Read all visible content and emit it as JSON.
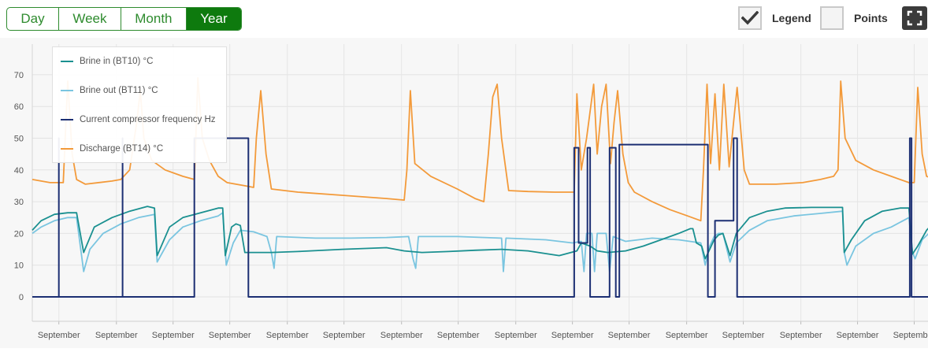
{
  "toolbar": {
    "ranges": [
      "Day",
      "Week",
      "Month",
      "Year"
    ],
    "active_range": "Year",
    "legend_label": "Legend",
    "legend_checked": true,
    "points_label": "Points",
    "points_checked": false,
    "fullscreen_icon": "fullscreen-icon"
  },
  "chart_data": {
    "type": "line",
    "title": "",
    "xlabel": "",
    "ylabel": "",
    "ylim": [
      -8,
      78
    ],
    "yticks": [
      0,
      10,
      20,
      30,
      40,
      50,
      60,
      70
    ],
    "xlim": [
      0,
      100
    ],
    "xticks": [
      3,
      9.5,
      15.9,
      22.3,
      28.8,
      35.2,
      41.7,
      48.1,
      54.6,
      61,
      67.4,
      73.9,
      80.3,
      86.8,
      93.2,
      99.6
    ],
    "xtick_labels": [
      "September",
      "September",
      "September",
      "September",
      "September",
      "September",
      "September",
      "September",
      "September",
      "September",
      "September",
      "September",
      "September",
      "September",
      "September",
      "September"
    ],
    "grid": true,
    "legend_position": "top-left",
    "series": [
      {
        "name": "Brine in (BT10) °C",
        "color": "#1a9090",
        "points": [
          [
            0,
            21
          ],
          [
            1,
            24
          ],
          [
            2.5,
            26
          ],
          [
            4,
            26.5
          ],
          [
            5,
            26.5
          ],
          [
            5.8,
            14
          ],
          [
            7,
            22
          ],
          [
            9,
            25
          ],
          [
            11,
            27
          ],
          [
            13,
            28.5
          ],
          [
            13.8,
            28
          ],
          [
            14.1,
            13
          ],
          [
            15.5,
            22
          ],
          [
            17,
            25
          ],
          [
            19,
            26.5
          ],
          [
            21,
            28
          ],
          [
            21.5,
            28
          ],
          [
            21.8,
            13
          ],
          [
            22.5,
            22
          ],
          [
            23,
            23
          ],
          [
            23.5,
            22.5
          ],
          [
            24,
            14
          ],
          [
            27,
            14
          ],
          [
            30,
            14.3
          ],
          [
            35,
            15
          ],
          [
            40,
            15.5
          ],
          [
            42,
            14.5
          ],
          [
            44,
            14
          ],
          [
            47,
            14.3
          ],
          [
            50,
            14.7
          ],
          [
            53,
            15
          ],
          [
            56,
            14.5
          ],
          [
            59.5,
            13
          ],
          [
            61.5,
            14.5
          ],
          [
            62,
            17
          ],
          [
            63,
            16
          ],
          [
            63.8,
            14.5
          ],
          [
            65,
            14
          ],
          [
            67,
            14.5
          ],
          [
            69,
            16
          ],
          [
            71,
            18
          ],
          [
            73,
            20
          ],
          [
            74.3,
            21.5
          ],
          [
            74.6,
            21.5
          ],
          [
            75,
            17
          ],
          [
            75.6,
            16
          ],
          [
            76,
            12
          ],
          [
            76.5,
            15
          ],
          [
            77,
            18
          ],
          [
            77.5,
            19.5
          ],
          [
            78,
            20
          ],
          [
            78.8,
            13
          ],
          [
            79.5,
            20
          ],
          [
            81,
            25
          ],
          [
            83,
            27
          ],
          [
            85,
            28
          ],
          [
            88,
            28.2
          ],
          [
            90,
            28.2
          ],
          [
            91.5,
            28.2
          ],
          [
            91.7,
            14
          ],
          [
            92.5,
            18
          ],
          [
            94,
            24
          ],
          [
            96,
            27
          ],
          [
            98,
            28
          ],
          [
            99,
            28
          ],
          [
            99.4,
            13.5
          ],
          [
            100,
            16
          ],
          [
            101,
            21
          ],
          [
            102,
            24
          ],
          [
            103,
            25.5
          ],
          [
            103.5,
            26
          ],
          [
            104,
            12
          ],
          [
            104.7,
            18
          ]
        ]
      },
      {
        "name": "Brine out (BT11) °C",
        "color": "#7ac5e0",
        "points": [
          [
            0,
            20
          ],
          [
            1,
            22
          ],
          [
            2.5,
            24
          ],
          [
            4,
            25
          ],
          [
            5,
            25
          ],
          [
            5.8,
            8
          ],
          [
            6.5,
            15
          ],
          [
            8,
            20
          ],
          [
            10,
            23
          ],
          [
            12,
            25
          ],
          [
            13.8,
            26
          ],
          [
            14.1,
            11
          ],
          [
            15.5,
            18
          ],
          [
            17,
            22
          ],
          [
            19,
            24
          ],
          [
            21,
            25.5
          ],
          [
            21.5,
            26.5
          ],
          [
            21.9,
            10
          ],
          [
            22.7,
            17
          ],
          [
            23.5,
            21
          ],
          [
            25,
            20.5
          ],
          [
            26.5,
            19
          ],
          [
            27,
            14
          ],
          [
            27.3,
            9
          ],
          [
            27.6,
            19
          ],
          [
            32,
            18.5
          ],
          [
            36,
            18.5
          ],
          [
            40,
            18.7
          ],
          [
            42.5,
            19
          ],
          [
            43,
            12
          ],
          [
            43.3,
            9
          ],
          [
            43.6,
            19
          ],
          [
            48,
            19
          ],
          [
            52,
            18.6
          ],
          [
            53,
            18.5
          ],
          [
            53.2,
            8
          ],
          [
            53.5,
            18.5
          ],
          [
            58,
            18
          ],
          [
            61,
            17
          ],
          [
            62,
            17.5
          ],
          [
            62.3,
            8
          ],
          [
            62.6,
            20
          ],
          [
            63.2,
            20
          ],
          [
            63.5,
            8
          ],
          [
            63.8,
            20
          ],
          [
            64.8,
            20
          ],
          [
            65.2,
            8
          ],
          [
            65.6,
            19
          ],
          [
            67,
            17.5
          ],
          [
            70,
            18.5
          ],
          [
            73,
            18
          ],
          [
            75.5,
            17
          ],
          [
            76,
            10
          ],
          [
            76.5,
            16
          ],
          [
            77,
            19
          ],
          [
            77.5,
            20
          ],
          [
            78,
            20
          ],
          [
            78.8,
            11
          ],
          [
            79.5,
            17
          ],
          [
            81,
            21
          ],
          [
            83,
            24
          ],
          [
            86,
            25.5
          ],
          [
            89,
            26.3
          ],
          [
            91.5,
            27
          ],
          [
            91.7,
            14
          ],
          [
            92,
            10
          ],
          [
            93,
            16
          ],
          [
            95,
            20
          ],
          [
            97,
            22
          ],
          [
            99,
            25
          ],
          [
            99.4,
            14
          ],
          [
            99.7,
            12
          ],
          [
            100.5,
            18
          ],
          [
            102,
            22
          ],
          [
            103,
            23.5
          ],
          [
            103.5,
            24
          ],
          [
            104,
            9
          ],
          [
            104.7,
            18
          ]
        ]
      },
      {
        "name": "Current compressor frequency Hz",
        "color": "#1c2f73",
        "points": [
          [
            0,
            0
          ],
          [
            3,
            0
          ],
          [
            3,
            50
          ],
          [
            3,
            0
          ],
          [
            10.2,
            0
          ],
          [
            10.2,
            50
          ],
          [
            10.2,
            0
          ],
          [
            18.3,
            0
          ],
          [
            18.3,
            50
          ],
          [
            24.4,
            50
          ],
          [
            24.4,
            0
          ],
          [
            61.2,
            0
          ],
          [
            61.2,
            47
          ],
          [
            61.7,
            47
          ],
          [
            61.7,
            17
          ],
          [
            62.7,
            17
          ],
          [
            62.7,
            47
          ],
          [
            63,
            47
          ],
          [
            63,
            0
          ],
          [
            65.2,
            0
          ],
          [
            65.2,
            47
          ],
          [
            65.9,
            47
          ],
          [
            65.9,
            0
          ],
          [
            66.3,
            0
          ],
          [
            66.3,
            48
          ],
          [
            76.3,
            48
          ],
          [
            76.3,
            0
          ],
          [
            77.1,
            0
          ],
          [
            77.1,
            24
          ],
          [
            79.2,
            24
          ],
          [
            79.2,
            50
          ],
          [
            79.6,
            50
          ],
          [
            79.6,
            0
          ],
          [
            99.1,
            0
          ],
          [
            99.1,
            50
          ],
          [
            99.3,
            50
          ],
          [
            99.3,
            0
          ],
          [
            102.5,
            0
          ],
          [
            102.5,
            50
          ],
          [
            102.7,
            50
          ],
          [
            102.7,
            0
          ],
          [
            104.7,
            0
          ]
        ]
      },
      {
        "name": "Discharge (BT14) °C",
        "color": "#f39a3a",
        "points": [
          [
            0,
            37
          ],
          [
            2,
            36
          ],
          [
            3,
            36
          ],
          [
            3.5,
            36
          ],
          [
            4,
            68
          ],
          [
            4.5,
            45
          ],
          [
            5,
            37
          ],
          [
            6,
            35.5
          ],
          [
            9,
            36.5
          ],
          [
            10,
            37
          ],
          [
            11,
            40
          ],
          [
            11.8,
            55
          ],
          [
            12.2,
            65
          ],
          [
            12.6,
            50
          ],
          [
            13.5,
            43
          ],
          [
            15,
            40
          ],
          [
            17,
            38
          ],
          [
            18.3,
            37
          ],
          [
            18.7,
            69
          ],
          [
            19.2,
            50
          ],
          [
            20,
            43
          ],
          [
            21,
            38
          ],
          [
            22,
            36
          ],
          [
            24,
            35
          ],
          [
            25,
            34.5
          ],
          [
            25.3,
            50
          ],
          [
            25.8,
            65
          ],
          [
            26.4,
            45
          ],
          [
            27,
            34
          ],
          [
            30,
            33
          ],
          [
            35,
            32
          ],
          [
            40,
            31
          ],
          [
            42,
            30.5
          ],
          [
            42.3,
            40
          ],
          [
            42.7,
            65
          ],
          [
            43.2,
            42
          ],
          [
            45,
            38
          ],
          [
            48,
            34
          ],
          [
            50,
            31
          ],
          [
            51,
            30
          ],
          [
            51.5,
            45
          ],
          [
            52,
            63
          ],
          [
            52.5,
            67
          ],
          [
            53,
            50
          ],
          [
            53.8,
            33.5
          ],
          [
            56,
            33.2
          ],
          [
            59,
            33
          ],
          [
            61.2,
            33
          ],
          [
            61.5,
            64
          ],
          [
            62,
            40
          ],
          [
            62.6,
            50
          ],
          [
            63.4,
            67
          ],
          [
            63.8,
            45
          ],
          [
            64.3,
            60
          ],
          [
            64.8,
            67
          ],
          [
            65.3,
            42
          ],
          [
            65.7,
            55
          ],
          [
            66.1,
            65
          ],
          [
            66.7,
            45
          ],
          [
            67.3,
            36
          ],
          [
            68,
            33
          ],
          [
            70,
            30
          ],
          [
            72,
            27.5
          ],
          [
            74,
            25.5
          ],
          [
            75.5,
            24
          ],
          [
            75.8,
            40
          ],
          [
            76.2,
            67
          ],
          [
            76.6,
            42
          ],
          [
            77.1,
            64
          ],
          [
            77.6,
            40
          ],
          [
            78.1,
            67
          ],
          [
            78.7,
            41
          ],
          [
            79.2,
            55
          ],
          [
            79.6,
            66
          ],
          [
            80.4,
            40
          ],
          [
            81,
            35.5
          ],
          [
            84,
            35.5
          ],
          [
            87,
            36
          ],
          [
            89,
            37
          ],
          [
            90.5,
            38
          ],
          [
            91,
            40
          ],
          [
            91.3,
            68
          ],
          [
            91.8,
            50
          ],
          [
            93,
            43
          ],
          [
            95,
            40
          ],
          [
            97,
            38
          ],
          [
            99,
            36
          ],
          [
            99.6,
            36
          ],
          [
            100,
            66
          ],
          [
            100.5,
            45
          ],
          [
            101,
            38
          ],
          [
            103,
            36
          ],
          [
            103.5,
            35.5
          ],
          [
            104,
            66
          ],
          [
            104.5,
            40
          ]
        ]
      }
    ]
  }
}
